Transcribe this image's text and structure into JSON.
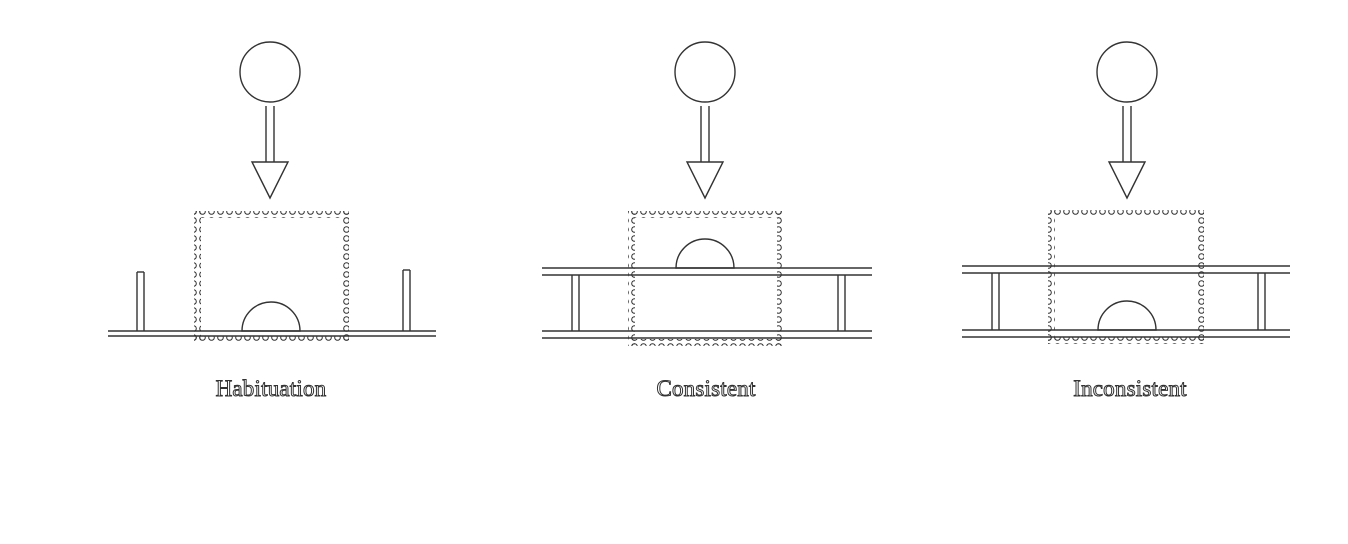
{
  "panels": [
    {
      "id": "habituation",
      "caption": "Habituation"
    },
    {
      "id": "consistent",
      "caption": "Consistent"
    },
    {
      "id": "inconsistent",
      "caption": "Inconsistent"
    }
  ],
  "colors": {
    "stroke": "#333333",
    "background": "#ffffff"
  },
  "icons": [
    "ball-icon",
    "down-arrow-icon",
    "occluder-screen",
    "table-surface"
  ]
}
